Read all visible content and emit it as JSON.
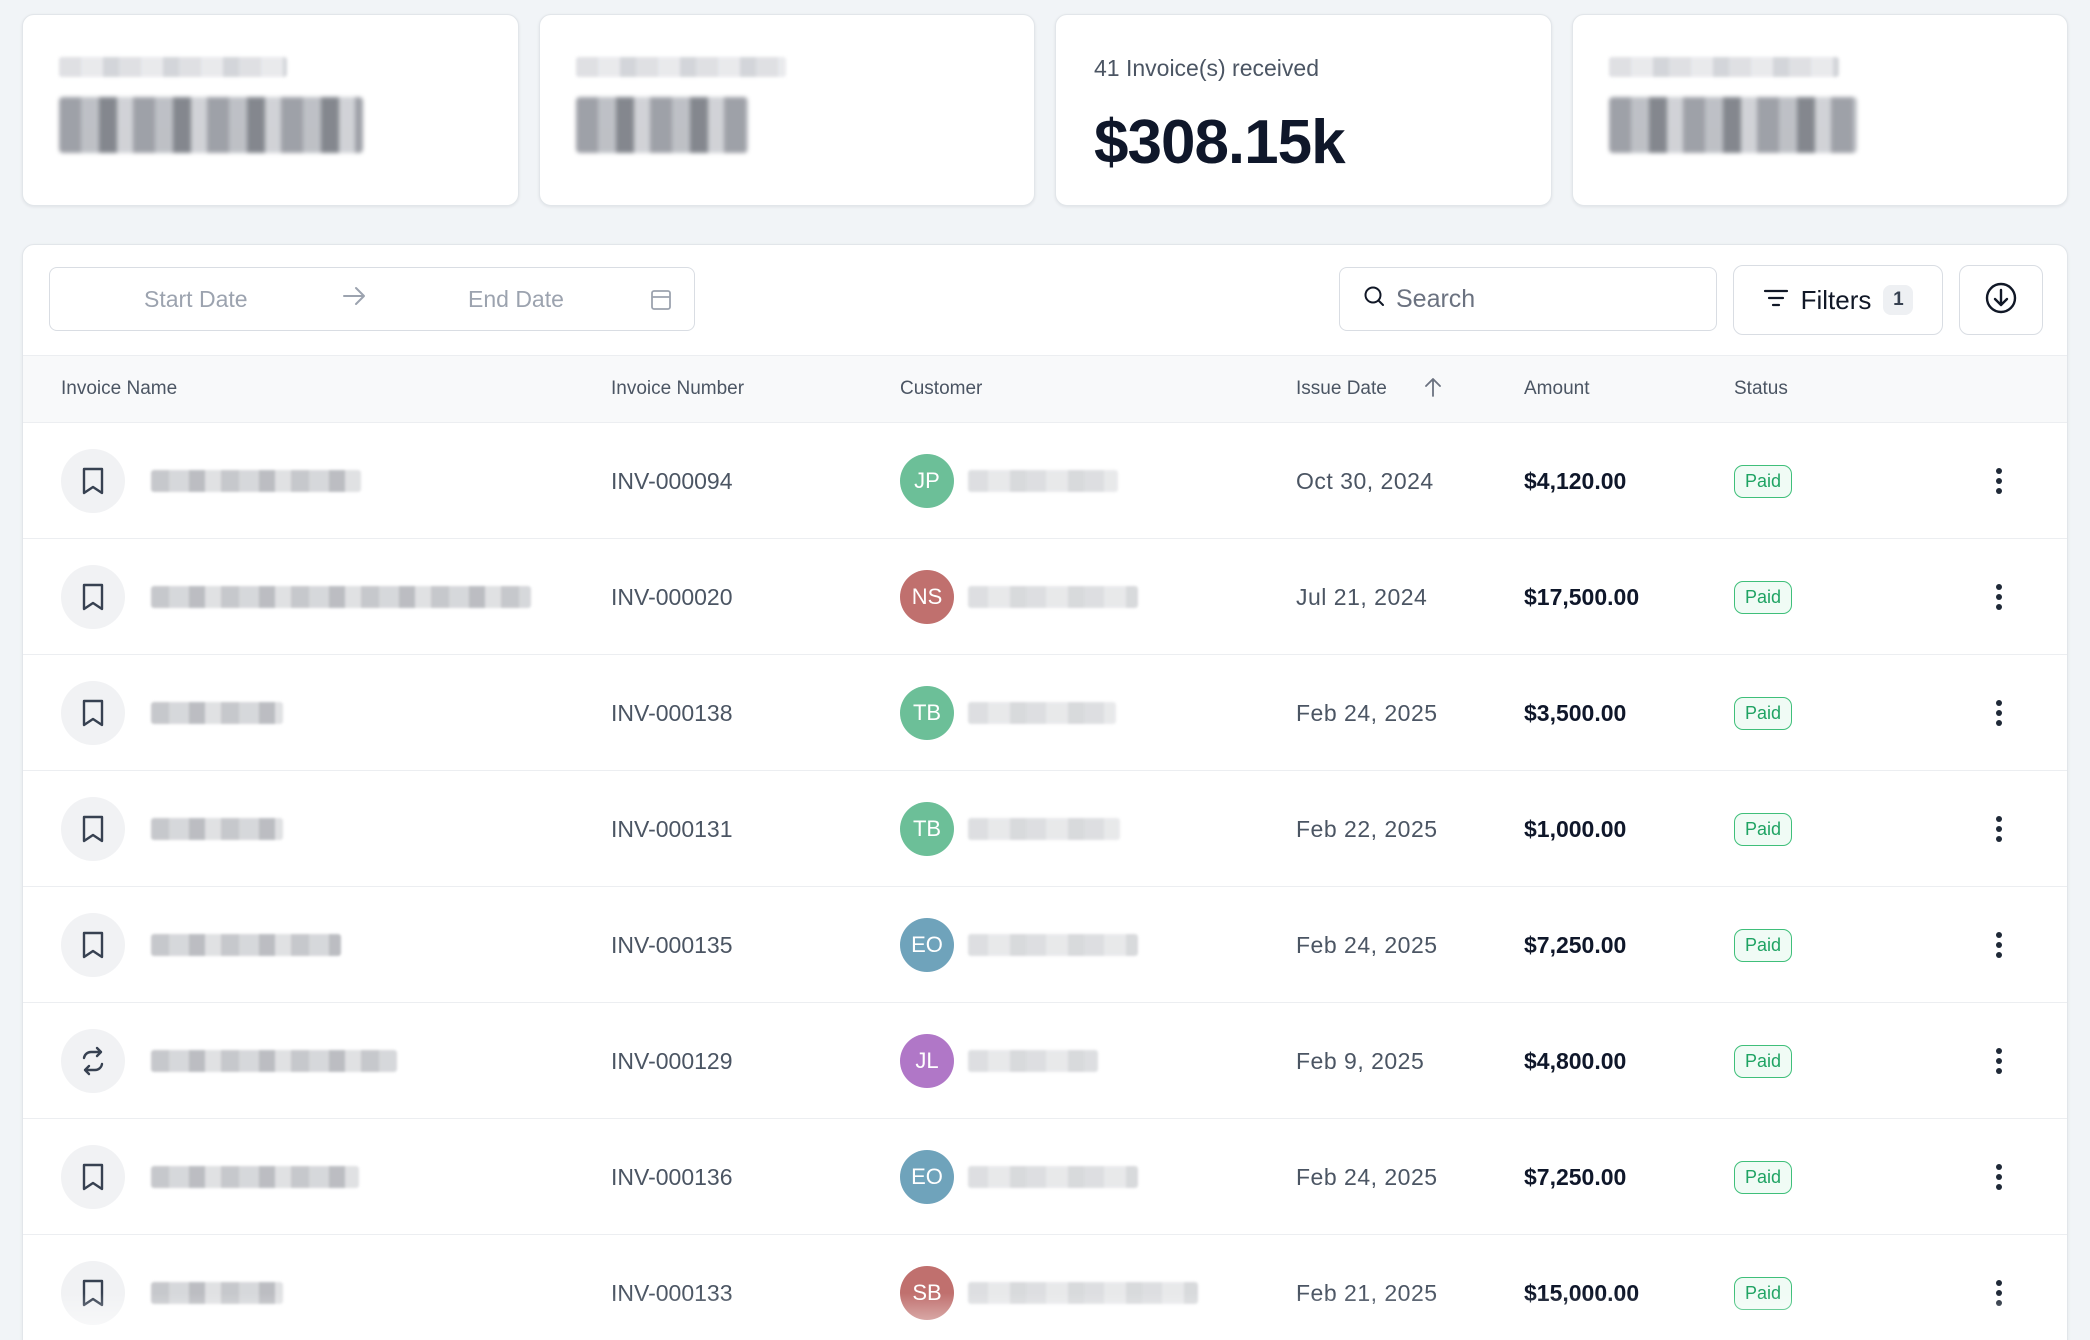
{
  "colors": {
    "page_bg": "#f1f4f7",
    "paid_green": "#1fa363",
    "avatar_green": "#6cbf98",
    "avatar_red": "#c0706e",
    "avatar_blue": "#6fa3bb",
    "avatar_purple": "#b077c7"
  },
  "cards": [
    {
      "redacted": true
    },
    {
      "redacted": true
    },
    {
      "label": "41 Invoice(s) received",
      "value": "$308.15k"
    },
    {
      "redacted": true
    }
  ],
  "toolbar": {
    "start_date_placeholder": "Start Date",
    "end_date_placeholder": "End Date",
    "search_placeholder": "Search",
    "filters_label": "Filters",
    "filters_count": "1",
    "icons": [
      "arrow-right-icon",
      "calendar-icon",
      "search-icon",
      "filter-icon",
      "download-icon"
    ]
  },
  "table": {
    "columns": {
      "invoice_name": "Invoice Name",
      "invoice_number": "Invoice Number",
      "customer": "Customer",
      "issue_date": "Issue Date",
      "amount": "Amount",
      "status": "Status"
    },
    "sort": {
      "column": "issue_date",
      "direction": "ascending"
    },
    "rows": [
      {
        "icon": "receipt-icon",
        "number": "INV-000094",
        "initials": "JP",
        "avatar_color": "#6cbf98",
        "date": "Oct 30, 2024",
        "amount": "$4,120.00",
        "status": "Paid"
      },
      {
        "icon": "receipt-icon",
        "number": "INV-000020",
        "initials": "NS",
        "avatar_color": "#c0706e",
        "date": "Jul 21, 2024",
        "amount": "$17,500.00",
        "status": "Paid"
      },
      {
        "icon": "receipt-icon",
        "number": "INV-000138",
        "initials": "TB",
        "avatar_color": "#6cbf98",
        "date": "Feb 24, 2025",
        "amount": "$3,500.00",
        "status": "Paid"
      },
      {
        "icon": "receipt-icon",
        "number": "INV-000131",
        "initials": "TB",
        "avatar_color": "#6cbf98",
        "date": "Feb 22, 2025",
        "amount": "$1,000.00",
        "status": "Paid"
      },
      {
        "icon": "receipt-icon",
        "number": "INV-000135",
        "initials": "EO",
        "avatar_color": "#6fa3bb",
        "date": "Feb 24, 2025",
        "amount": "$7,250.00",
        "status": "Paid"
      },
      {
        "icon": "recurring-icon",
        "number": "INV-000129",
        "initials": "JL",
        "avatar_color": "#b077c7",
        "date": "Feb 9, 2025",
        "amount": "$4,800.00",
        "status": "Paid"
      },
      {
        "icon": "receipt-icon",
        "number": "INV-000136",
        "initials": "EO",
        "avatar_color": "#6fa3bb",
        "date": "Feb 24, 2025",
        "amount": "$7,250.00",
        "status": "Paid"
      },
      {
        "icon": "receipt-icon",
        "number": "INV-000133",
        "initials": "SB",
        "avatar_color": "#c0706e",
        "date": "Feb 21, 2025",
        "amount": "$15,000.00",
        "status": "Paid"
      }
    ]
  }
}
